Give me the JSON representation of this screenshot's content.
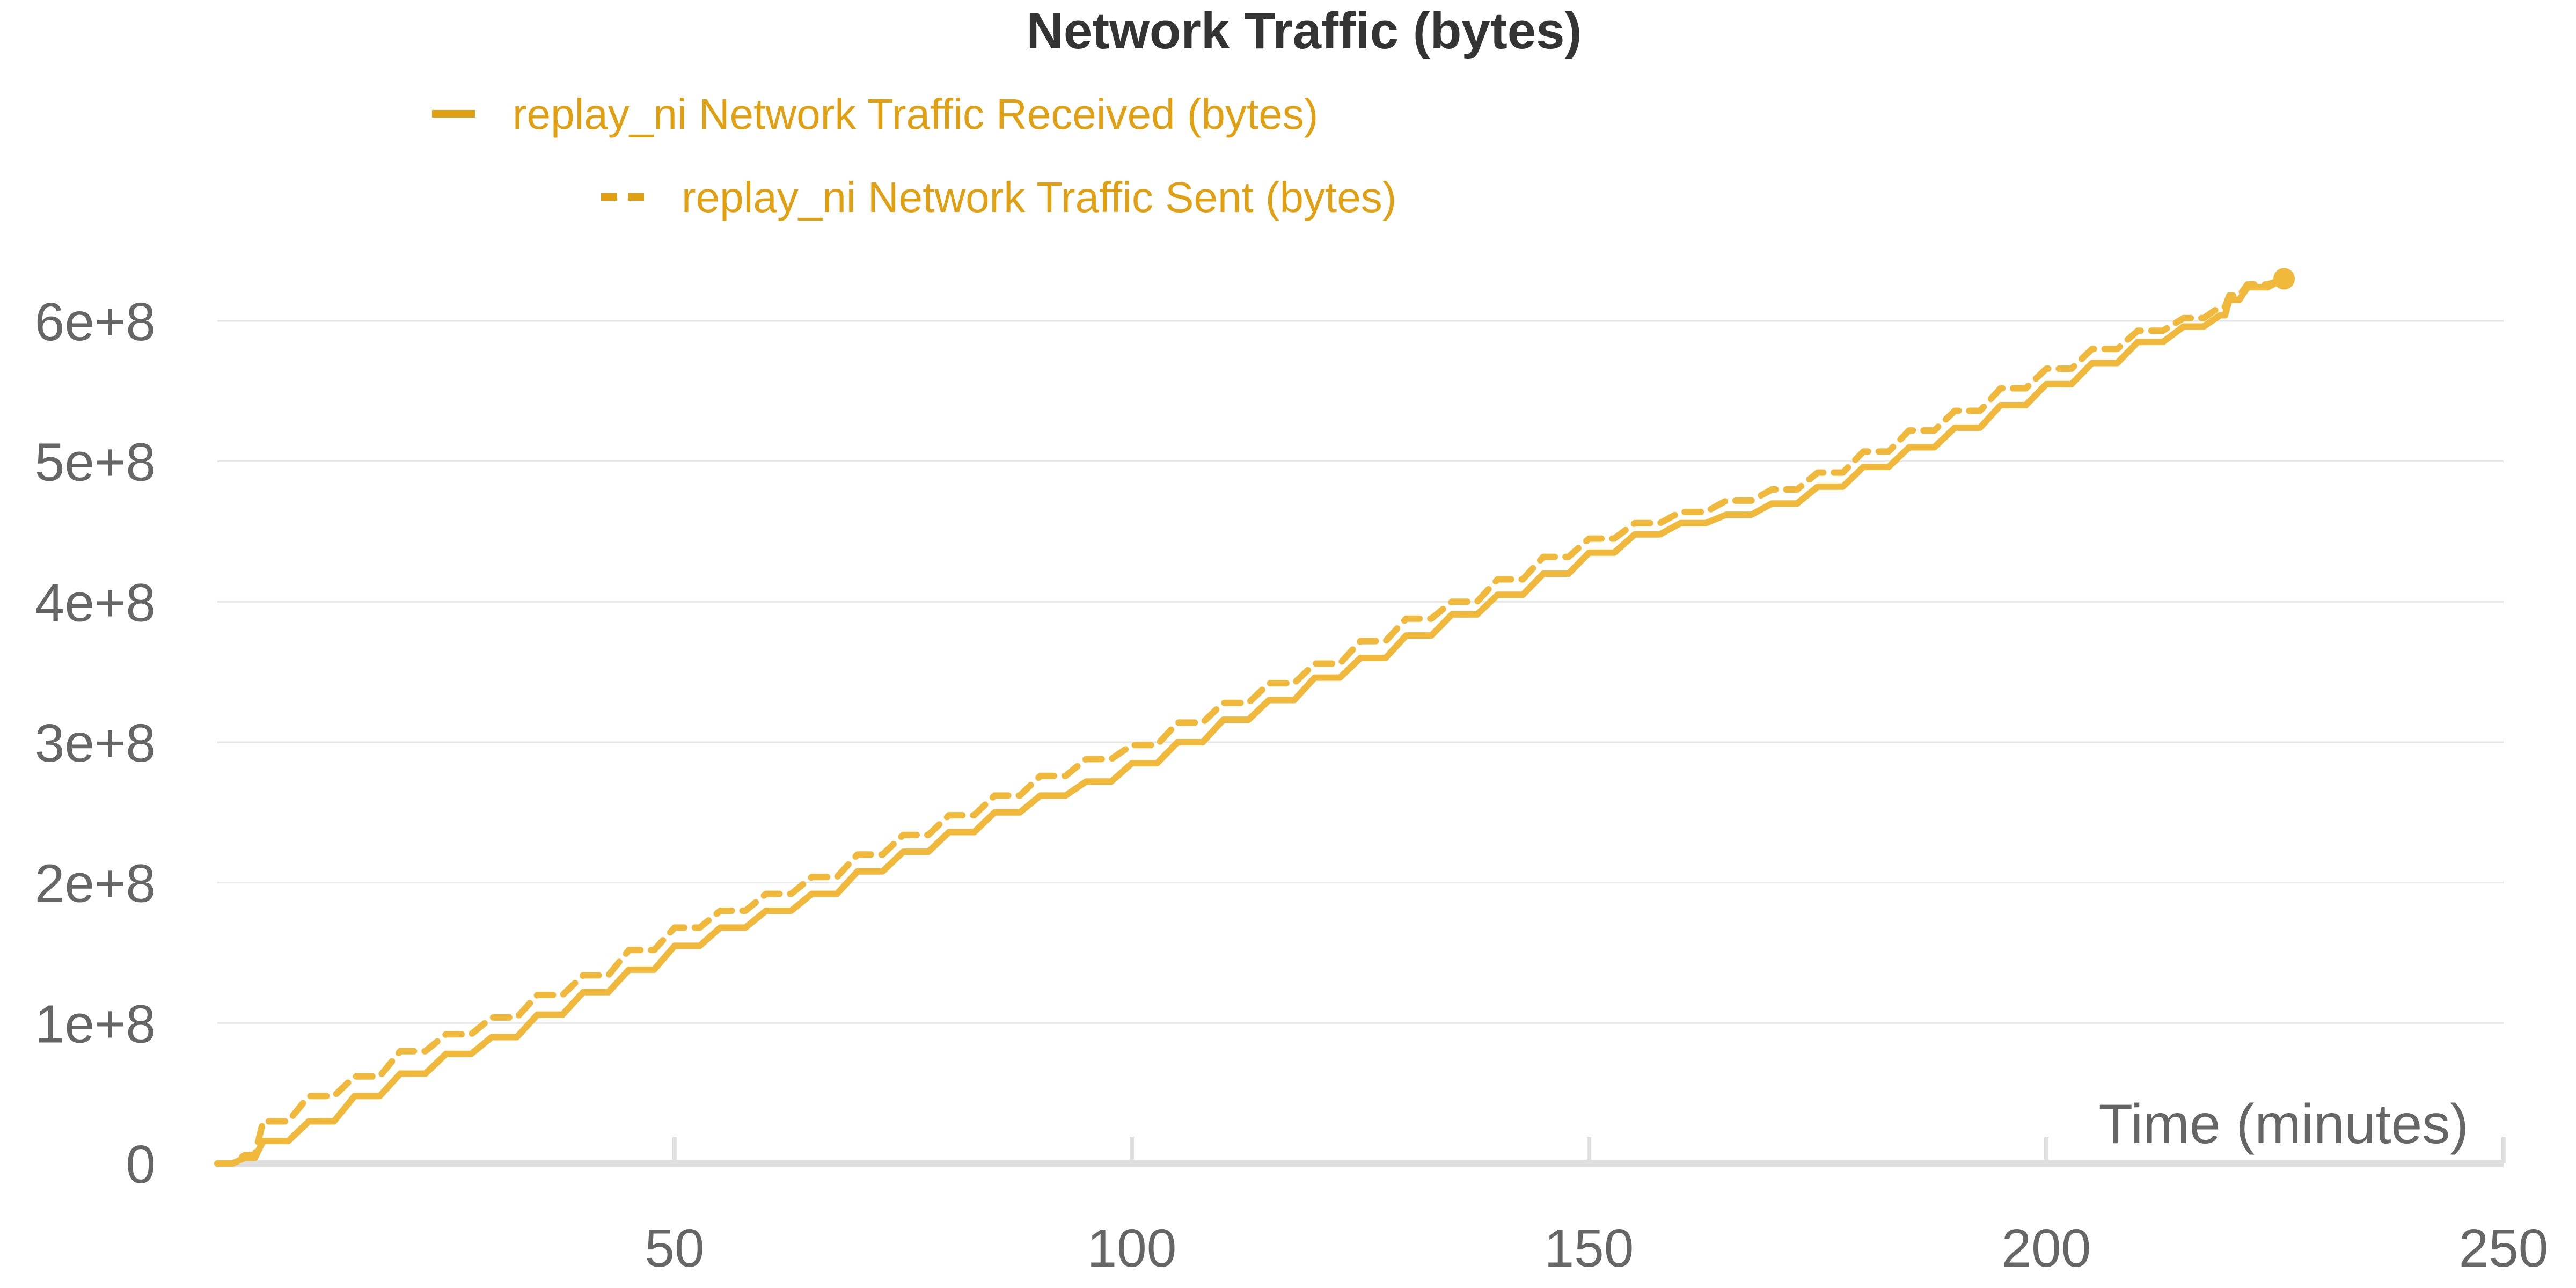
{
  "chart_data": {
    "type": "line",
    "title": "Network Traffic (bytes)",
    "xlabel": "Time (minutes)",
    "ylabel": "",
    "xlim": [
      0,
      250
    ],
    "ylim": [
      0,
      600000000
    ],
    "x_ticks": [
      {
        "value": 50,
        "label": "50"
      },
      {
        "value": 100,
        "label": "100"
      },
      {
        "value": 150,
        "label": "150"
      },
      {
        "value": 200,
        "label": "200"
      },
      {
        "value": 250,
        "label": "250"
      }
    ],
    "y_ticks": [
      {
        "value": 0,
        "label": "0"
      },
      {
        "value": 100000000,
        "label": "1e+8"
      },
      {
        "value": 200000000,
        "label": "2e+8"
      },
      {
        "value": 300000000,
        "label": "3e+8"
      },
      {
        "value": 400000000,
        "label": "4e+8"
      },
      {
        "value": 500000000,
        "label": "5e+8"
      },
      {
        "value": 600000000,
        "label": "6e+8"
      }
    ],
    "grid": "horizontal",
    "legend_position": "top-left",
    "colors": {
      "series": "#f0b93b",
      "legend_text": "#e0a012",
      "grid": "#e6e6e6",
      "axis": "#e0e0e0"
    },
    "series": [
      {
        "name": "replay_ni Network Traffic Received (bytes)",
        "style": "solid",
        "x": [
          0,
          3,
          5,
          10,
          15,
          20,
          25,
          30,
          35,
          40,
          45,
          50,
          55,
          60,
          65,
          70,
          75,
          80,
          85,
          90,
          95,
          100,
          105,
          110,
          115,
          120,
          125,
          130,
          135,
          140,
          145,
          150,
          155,
          160,
          165,
          170,
          175,
          180,
          185,
          190,
          195,
          200,
          205,
          210,
          215,
          219,
          220,
          222,
          226
        ],
        "y": [
          0,
          4000000,
          16000000,
          30000000,
          48000000,
          64000000,
          78000000,
          90000000,
          106000000,
          122000000,
          138000000,
          155000000,
          168000000,
          180000000,
          192000000,
          208000000,
          222000000,
          236000000,
          250000000,
          262000000,
          272000000,
          285000000,
          300000000,
          316000000,
          330000000,
          346000000,
          360000000,
          376000000,
          391000000,
          405000000,
          420000000,
          435000000,
          448000000,
          456000000,
          462000000,
          470000000,
          482000000,
          496000000,
          510000000,
          524000000,
          540000000,
          555000000,
          570000000,
          585000000,
          596000000,
          604000000,
          615000000,
          624000000,
          630000000
        ]
      },
      {
        "name": "replay_ni Network Traffic Sent (bytes)",
        "style": "dashed",
        "x": [
          0,
          3,
          5,
          10,
          15,
          20,
          25,
          30,
          35,
          40,
          45,
          50,
          55,
          60,
          65,
          70,
          75,
          80,
          85,
          90,
          95,
          100,
          105,
          110,
          115,
          120,
          125,
          130,
          135,
          140,
          145,
          150,
          155,
          160,
          165,
          170,
          175,
          180,
          185,
          190,
          195,
          200,
          205,
          210,
          215,
          219,
          220,
          222,
          226
        ],
        "y": [
          0,
          6000000,
          30000000,
          48000000,
          62000000,
          80000000,
          92000000,
          104000000,
          120000000,
          134000000,
          152000000,
          168000000,
          180000000,
          192000000,
          204000000,
          220000000,
          234000000,
          248000000,
          262000000,
          276000000,
          288000000,
          298000000,
          314000000,
          328000000,
          342000000,
          356000000,
          372000000,
          388000000,
          400000000,
          416000000,
          432000000,
          445000000,
          456000000,
          464000000,
          472000000,
          480000000,
          492000000,
          507000000,
          522000000,
          536000000,
          552000000,
          566000000,
          580000000,
          593000000,
          602000000,
          610000000,
          618000000,
          626000000,
          630000000
        ]
      }
    ]
  }
}
